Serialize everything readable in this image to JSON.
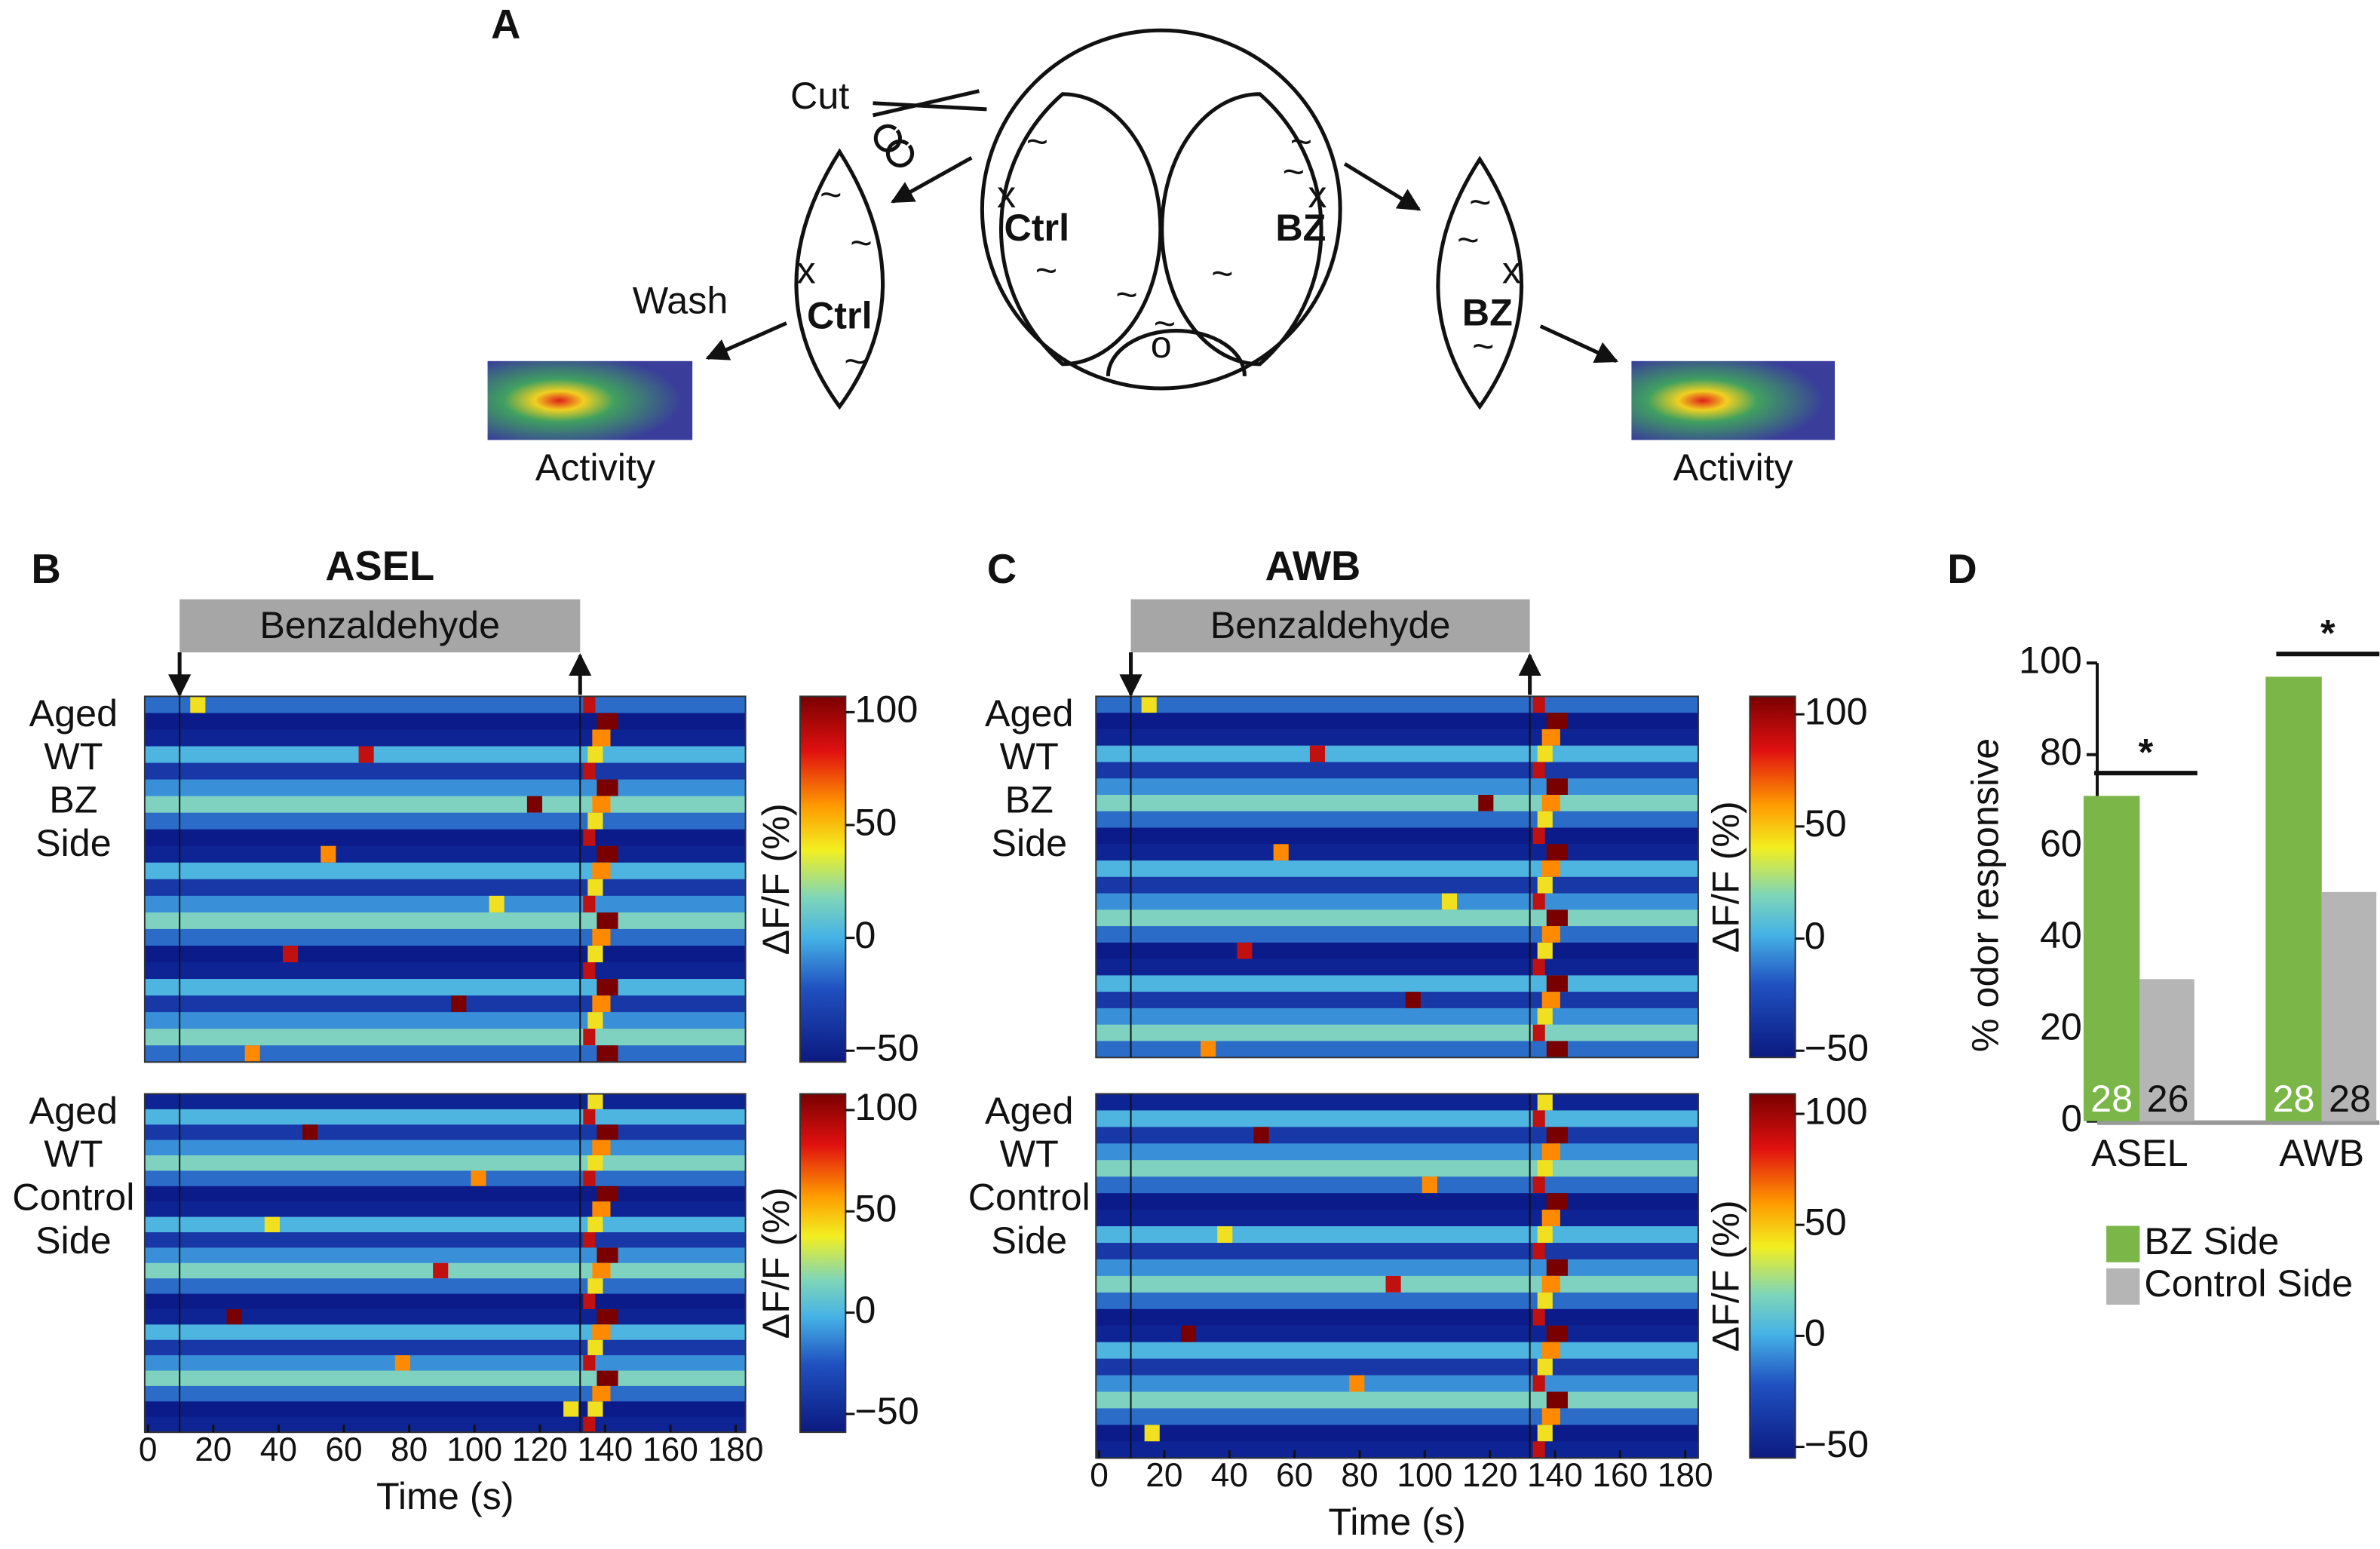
{
  "panel_a": {
    "label": "A",
    "cut": "Cut",
    "wash": "Wash",
    "ctrl": "Ctrl",
    "bz": "BZ",
    "activity": "Activity",
    "x_mark": "x",
    "origin_mark": "o",
    "worm": "~"
  },
  "panel_b": {
    "label": "B",
    "title": "ASEL",
    "stimulus": "Benzaldehyde",
    "xlim": [
      -1,
      183
    ],
    "xticks": [
      0,
      20,
      40,
      60,
      80,
      100,
      120,
      140,
      160,
      180
    ],
    "xlabel": "Time (s)",
    "colorbar_label": "ΔF/F (%)",
    "heatmaps": [
      {
        "row_labels": [
          "Aged",
          "WT",
          "BZ",
          "Side"
        ],
        "clim": [
          -55,
          107
        ],
        "cticks": [
          100,
          50,
          0,
          {
            "value": -50,
            "label": "−50"
          }
        ]
      },
      {
        "row_labels": [
          "Aged",
          "WT",
          "Control",
          "Side"
        ],
        "clim": [
          -59,
          108
        ],
        "cticks": [
          100,
          50,
          0,
          {
            "value": -50,
            "label": "−50"
          }
        ]
      }
    ]
  },
  "panel_c": {
    "label": "C",
    "title": "AWB",
    "stimulus": "Benzaldehyde",
    "xlim": [
      -1,
      184
    ],
    "xticks": [
      0,
      20,
      40,
      60,
      80,
      100,
      120,
      140,
      160,
      180
    ],
    "xlabel": "Time (s)",
    "colorbar_label": "ΔF/F (%)",
    "heatmaps": [
      {
        "row_labels": [
          "Aged",
          "WT",
          "BZ",
          "Side"
        ],
        "clim": [
          -53,
          108
        ],
        "cticks": [
          100,
          50,
          0,
          {
            "value": -50,
            "label": "−50"
          }
        ]
      },
      {
        "row_labels": [
          "Aged",
          "WT",
          "Control",
          "Side"
        ],
        "clim": [
          -55,
          109
        ],
        "cticks": [
          100,
          50,
          0,
          {
            "value": -50,
            "label": "−50"
          }
        ]
      }
    ]
  },
  "chart_data": {
    "type": "bar",
    "label": "D",
    "ylabel": "% odor responsive",
    "categories": [
      "ASEL",
      "AWB"
    ],
    "series": [
      {
        "name": "BZ Side",
        "color": "#7ab648",
        "values": [
          71,
          97
        ],
        "n": [
          28,
          28
        ]
      },
      {
        "name": "Control Side",
        "color": "#b5b5b5",
        "values": [
          31,
          50
        ],
        "n": [
          26,
          28
        ]
      }
    ],
    "significance": [
      "*",
      "*"
    ],
    "ylim": [
      0,
      100
    ],
    "yticks": [
      0,
      20,
      40,
      60,
      80,
      100
    ]
  }
}
